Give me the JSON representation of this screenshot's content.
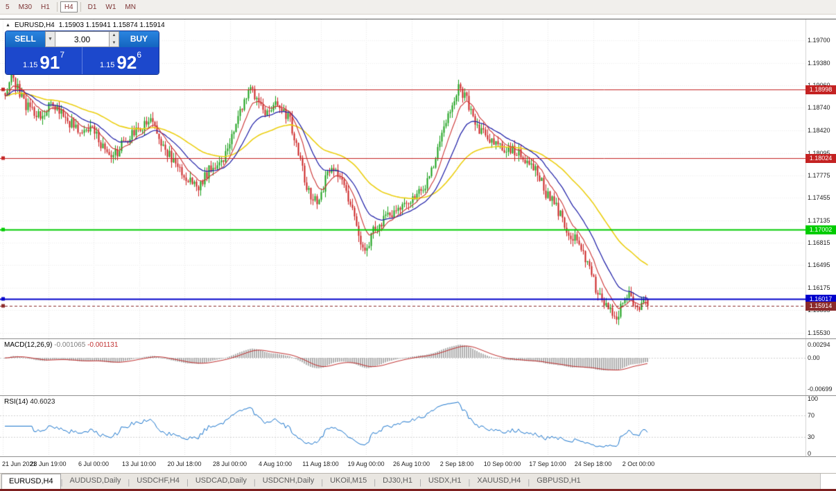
{
  "toolbar": {
    "timeframes": [
      {
        "label": "5"
      },
      {
        "label": "M30"
      },
      {
        "label": "H1"
      },
      {
        "label": "H4",
        "active": true,
        "sep_before": true
      },
      {
        "label": "D1",
        "sep_before": true
      },
      {
        "label": "W1"
      },
      {
        "label": "MN"
      }
    ]
  },
  "chart": {
    "title": "EURUSD,H4",
    "ohlc": "1.15903 1.15941 1.15874 1.15914"
  },
  "icons": {
    "chart_marker": "▲",
    "chevron_down": "▼",
    "caret_up": "▲",
    "caret_down": "▼"
  },
  "trade_panel": {
    "sell_label": "SELL",
    "buy_label": "BUY",
    "volume": "3.00",
    "sell_price_small": "1.15",
    "sell_price_big": "91",
    "sell_price_sup": "7",
    "buy_price_small": "1.15",
    "buy_price_big": "92",
    "buy_price_sup": "6"
  },
  "price_axis": {
    "labels": [
      "1.19700",
      "1.19380",
      "1.19060",
      "1.18740",
      "1.18420",
      "1.18095",
      "1.17775",
      "1.17455",
      "1.17135",
      "1.16815",
      "1.16495",
      "1.16175",
      "1.15855",
      "1.15530"
    ]
  },
  "levels": [
    {
      "price": 1.18998,
      "label": "1.18998",
      "color": "#c42222",
      "width": 1,
      "dash": false,
      "text_color": "#ffffff"
    },
    {
      "price": 1.18024,
      "label": "1.18024",
      "color": "#c42222",
      "width": 1,
      "dash": false,
      "text_color": "#ffffff"
    },
    {
      "price": 1.17002,
      "label": "1.17002",
      "color": "#00cc00",
      "width": 2,
      "dash": false,
      "text_color": "#ffffff"
    },
    {
      "price": 1.16017,
      "label": "1.16017",
      "color": "#0000cc",
      "width": 2,
      "dash": false,
      "text_color": "#ffffff"
    },
    {
      "price": 1.15914,
      "label": "1.15914",
      "color": "#8b2a2a",
      "width": 1,
      "dash": true,
      "text_color": "#ffffff"
    }
  ],
  "macd": {
    "label": "MACD(12,26,9)",
    "value_main": "-0.001065",
    "value_signal": "-0.001131",
    "axis": [
      "0.00294",
      "0.00",
      "-0.00699"
    ]
  },
  "rsi": {
    "label": "RSI(14)",
    "value": "40.6023",
    "axis": [
      "100",
      "70",
      "30",
      "0"
    ]
  },
  "time_axis": {
    "labels": [
      "21 Jun 2021",
      "28 Jun 19:00",
      "6 Jul 00:00",
      "13 Jul 10:00",
      "20 Jul 18:00",
      "28 Jul 00:00",
      "4 Aug 10:00",
      "11 Aug 18:00",
      "19 Aug 00:00",
      "26 Aug 10:00",
      "2 Sep 18:00",
      "10 Sep 00:00",
      "17 Sep 10:00",
      "24 Sep 18:00",
      "2 Oct 00:00"
    ]
  },
  "tabs": [
    {
      "label": "EURUSD,H4",
      "active": true
    },
    {
      "label": "AUDUSD,Daily"
    },
    {
      "label": "USDCHF,H4"
    },
    {
      "label": "USDCAD,Daily"
    },
    {
      "label": "USDCNH,Daily"
    },
    {
      "label": "UKOil,M15"
    },
    {
      "label": "DJ30,H1"
    },
    {
      "label": "USDX,H1"
    },
    {
      "label": "XAUUSD,H4"
    },
    {
      "label": "GBPUSD,H1"
    }
  ],
  "chart_data": {
    "type": "candlestick",
    "symbol": "EURUSD",
    "timeframe": "H4",
    "price_range": [
      1.1545,
      1.2
    ],
    "candle_count": 310,
    "seed": 42,
    "noise": 0.0016,
    "wick": 0.0009,
    "last_close": 1.15914,
    "anchors": [
      [
        0.0,
        1.1895
      ],
      [
        0.01,
        1.192
      ],
      [
        0.03,
        1.188
      ],
      [
        0.055,
        1.1862
      ],
      [
        0.075,
        1.188
      ],
      [
        0.095,
        1.1858
      ],
      [
        0.115,
        1.184
      ],
      [
        0.135,
        1.1842
      ],
      [
        0.15,
        1.1822
      ],
      [
        0.165,
        1.1798
      ],
      [
        0.185,
        1.1826
      ],
      [
        0.205,
        1.184
      ],
      [
        0.225,
        1.1858
      ],
      [
        0.245,
        1.182
      ],
      [
        0.265,
        1.1792
      ],
      [
        0.285,
        1.1772
      ],
      [
        0.3,
        1.1758
      ],
      [
        0.32,
        1.179
      ],
      [
        0.34,
        1.1802
      ],
      [
        0.36,
        1.1852
      ],
      [
        0.378,
        1.1902
      ],
      [
        0.392,
        1.1888
      ],
      [
        0.408,
        1.1862
      ],
      [
        0.425,
        1.1882
      ],
      [
        0.442,
        1.1858
      ],
      [
        0.458,
        1.1802
      ],
      [
        0.472,
        1.1752
      ],
      [
        0.488,
        1.1742
      ],
      [
        0.505,
        1.1788
      ],
      [
        0.522,
        1.1772
      ],
      [
        0.54,
        1.1732
      ],
      [
        0.558,
        1.1668
      ],
      [
        0.575,
        1.1702
      ],
      [
        0.595,
        1.1718
      ],
      [
        0.615,
        1.1728
      ],
      [
        0.635,
        1.1748
      ],
      [
        0.655,
        1.1762
      ],
      [
        0.672,
        1.1808
      ],
      [
        0.69,
        1.1868
      ],
      [
        0.706,
        1.1902
      ],
      [
        0.72,
        1.1882
      ],
      [
        0.738,
        1.1842
      ],
      [
        0.755,
        1.1828
      ],
      [
        0.772,
        1.1818
      ],
      [
        0.79,
        1.1812
      ],
      [
        0.808,
        1.1802
      ],
      [
        0.825,
        1.1788
      ],
      [
        0.842,
        1.1752
      ],
      [
        0.858,
        1.1732
      ],
      [
        0.875,
        1.1698
      ],
      [
        0.892,
        1.1682
      ],
      [
        0.908,
        1.1648
      ],
      [
        0.922,
        1.1608
      ],
      [
        0.938,
        1.1585
      ],
      [
        0.95,
        1.1576
      ],
      [
        0.962,
        1.1595
      ],
      [
        0.972,
        1.1612
      ],
      [
        0.982,
        1.1585
      ],
      [
        0.992,
        1.16
      ],
      [
        1.0,
        1.15914
      ]
    ],
    "ma": {
      "fast_period": 9,
      "mid_period": 21,
      "slow_period": 55
    },
    "colors": {
      "up": "#18a018",
      "down": "#cc2020",
      "ma_fast": "#cc3333",
      "ma_mid": "#1a1aa6",
      "ma_slow": "#eccf10",
      "macd_hist": "#b0b0b0",
      "macd_signal": "#c03030",
      "rsi": "#1874cd"
    }
  }
}
